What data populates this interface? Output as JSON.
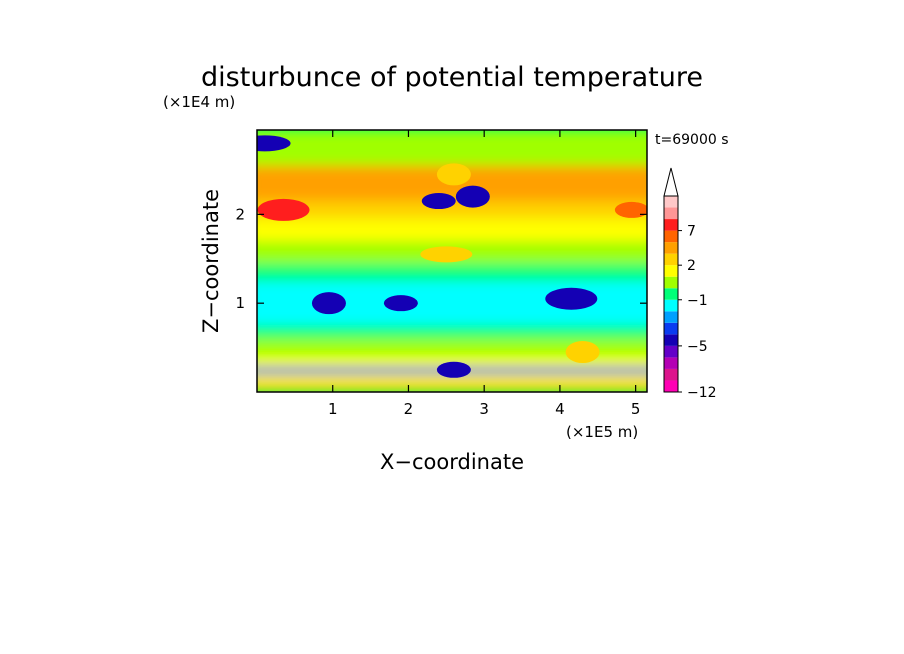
{
  "chart_data": {
    "type": "heatmap",
    "title": "disturbunce of potential temperature",
    "xlabel": "X−coordinate",
    "ylabel": "Z−coordinate",
    "x_unit": "(×1E5 m)",
    "y_unit": "(×1E4 m)",
    "time_label": "t=69000 s",
    "xlim": [
      0,
      5.15
    ],
    "ylim": [
      0,
      2.95
    ],
    "x_ticks": [
      1,
      2,
      3,
      4,
      5
    ],
    "y_ticks": [
      1,
      2
    ],
    "colorbar": {
      "levels": [
        -12,
        -11,
        -9,
        -7,
        -5,
        -4,
        -3,
        -2,
        -1,
        0,
        1,
        2,
        3,
        5,
        7,
        9,
        11
      ],
      "tick_labels": [
        "−12",
        "−5",
        "−1",
        "2",
        "7"
      ],
      "tick_values": [
        -12,
        -5,
        -1,
        2,
        7
      ],
      "extend": "max",
      "colors": [
        "#ff00b4",
        "#dc148c",
        "#b400b4",
        "#6400c8",
        "#1400b4",
        "#0a3cf0",
        "#00a0ff",
        "#00ffff",
        "#00ff78",
        "#a0ff00",
        "#ffff00",
        "#ffd200",
        "#ffa000",
        "#ff6400",
        "#ff1e1e",
        "#ff9696",
        "#ffc8c8"
      ]
    },
    "field_features": [
      {
        "x": 0.35,
        "z": 2.05,
        "value": 7
      },
      {
        "x": 4.95,
        "z": 2.05,
        "value": 5
      },
      {
        "x": 2.6,
        "z": 2.45,
        "value": 2
      },
      {
        "x": 2.5,
        "z": 1.55,
        "value": 2
      },
      {
        "x": 0.95,
        "z": 1.0,
        "value": -5
      },
      {
        "x": 1.9,
        "z": 1.0,
        "value": -5
      },
      {
        "x": 4.15,
        "z": 1.05,
        "value": -5
      },
      {
        "x": 2.4,
        "z": 2.15,
        "value": -5
      },
      {
        "x": 2.85,
        "z": 2.2,
        "value": -5
      },
      {
        "x": 0.1,
        "z": 2.8,
        "value": -5
      },
      {
        "x": 4.3,
        "z": 0.45,
        "value": 2
      },
      {
        "x": 2.6,
        "z": 0.25,
        "value": -5
      }
    ]
  }
}
